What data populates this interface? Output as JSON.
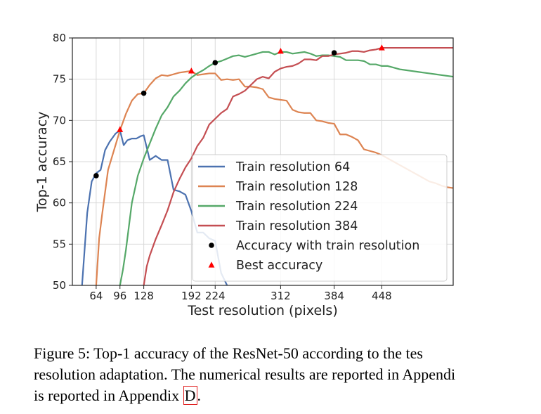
{
  "chart_data": {
    "type": "line",
    "xlabel": "Test resolution (pixels)",
    "ylabel": "Top-1 accuracy",
    "xlim": [
      32,
      544
    ],
    "ylim": [
      50,
      80
    ],
    "xticks": [
      64,
      96,
      128,
      192,
      224,
      312,
      384,
      448
    ],
    "yticks": [
      50,
      55,
      60,
      65,
      70,
      75,
      80
    ],
    "grid": true,
    "legend_placement": "lower-right",
    "series": [
      {
        "name": "Train resolution 64",
        "color": "#4c72b0",
        "x": [
          45,
          52,
          58,
          64,
          70,
          76,
          82,
          90,
          96,
          101,
          106,
          112,
          118,
          124,
          128,
          136,
          144,
          152,
          160,
          168,
          176,
          184,
          192,
          200,
          208,
          216,
          224,
          232,
          240
        ],
        "y": [
          50,
          58.8,
          62.6,
          63.6,
          64.0,
          66.4,
          67.4,
          68.4,
          68.8,
          67.0,
          67.6,
          67.8,
          67.8,
          68.1,
          68.2,
          65.2,
          65.7,
          65.2,
          65.2,
          61.6,
          61.4,
          61.0,
          59.0,
          56.4,
          56.4,
          55.7,
          55.4,
          51.5,
          50
        ]
      },
      {
        "name": "Train resolution 128",
        "color": "#dd8452",
        "x": [
          64,
          68,
          72,
          80,
          88,
          96,
          104,
          112,
          120,
          128,
          136,
          144,
          152,
          160,
          168,
          176,
          184,
          192,
          200,
          208,
          216,
          224,
          232,
          240,
          248,
          256,
          264,
          272,
          280,
          288,
          296,
          304,
          312,
          320,
          328,
          336,
          344,
          352,
          360,
          368,
          376,
          384,
          392,
          400,
          408,
          416,
          424,
          432,
          440,
          448,
          456,
          464,
          472,
          480,
          488,
          496,
          504,
          512,
          520,
          528,
          536,
          544
        ],
        "y": [
          50,
          55.7,
          58.6,
          64.0,
          66.4,
          68.8,
          70.8,
          72.4,
          73.2,
          73.3,
          74.3,
          75.1,
          75.5,
          75.4,
          75.6,
          75.8,
          75.9,
          76.0,
          75.5,
          75.6,
          75.7,
          75.7,
          74.9,
          75.0,
          74.9,
          75.0,
          74.1,
          74.1,
          74.0,
          73.8,
          72.8,
          72.6,
          72.5,
          72.4,
          71.3,
          71.0,
          70.9,
          70.9,
          70.0,
          69.9,
          69.7,
          69.6,
          68.3,
          68.3,
          68.0,
          67.6,
          66.5,
          66.3,
          66.1,
          65.8,
          65.4,
          65.0,
          64.6,
          64.2,
          63.8,
          63.4,
          63.0,
          62.6,
          62.4,
          62.1,
          61.9,
          61.8
        ]
      },
      {
        "name": "Train resolution 224",
        "color": "#55a868",
        "x": [
          96,
          100,
          104,
          112,
          120,
          128,
          136,
          144,
          152,
          160,
          168,
          176,
          184,
          192,
          200,
          208,
          216,
          224,
          232,
          240,
          248,
          256,
          264,
          272,
          280,
          288,
          296,
          304,
          312,
          320,
          328,
          336,
          344,
          352,
          360,
          368,
          376,
          384,
          392,
          400,
          408,
          416,
          424,
          432,
          440,
          448,
          456,
          464,
          472,
          480,
          488,
          496,
          504,
          512,
          520,
          528,
          536,
          544
        ],
        "y": [
          50,
          51.9,
          54.3,
          60.0,
          63.3,
          65.4,
          67.2,
          69.0,
          70.6,
          71.6,
          72.9,
          73.6,
          74.5,
          75.2,
          75.7,
          76.1,
          76.6,
          77.0,
          77.2,
          77.5,
          77.8,
          77.9,
          77.7,
          77.9,
          78.1,
          78.3,
          78.3,
          78.0,
          78.3,
          78.3,
          78.1,
          78.2,
          78.3,
          78.1,
          77.8,
          77.9,
          77.9,
          77.8,
          77.7,
          77.3,
          77.3,
          77.3,
          77.2,
          76.8,
          76.8,
          76.6,
          76.6,
          76.4,
          76.2,
          76.1,
          76.0,
          75.9,
          75.8,
          75.7,
          75.6,
          75.5,
          75.4,
          75.3
        ]
      },
      {
        "name": "Train resolution 384",
        "color": "#c44e52",
        "x": [
          128,
          132,
          136,
          144,
          152,
          160,
          168,
          176,
          184,
          192,
          200,
          208,
          216,
          224,
          232,
          240,
          248,
          256,
          264,
          272,
          280,
          288,
          296,
          304,
          312,
          320,
          328,
          336,
          344,
          352,
          360,
          368,
          376,
          384,
          392,
          400,
          408,
          416,
          424,
          432,
          440,
          448,
          456,
          464,
          472,
          480,
          488,
          496,
          504,
          512,
          520,
          528,
          536,
          544
        ],
        "y": [
          50,
          52.3,
          53.6,
          55.6,
          57.3,
          59.1,
          61.3,
          62.9,
          64.3,
          65.4,
          66.9,
          67.9,
          69.5,
          70.2,
          70.9,
          71.4,
          72.9,
          73.2,
          73.6,
          74.3,
          75.0,
          75.3,
          75.1,
          75.9,
          76.3,
          76.5,
          76.6,
          76.9,
          77.4,
          77.4,
          77.3,
          77.8,
          77.8,
          78.0,
          78.1,
          78.2,
          78.4,
          78.4,
          78.3,
          78.5,
          78.6,
          78.8,
          78.8,
          78.8,
          78.8,
          78.8,
          78.8,
          78.8,
          78.8,
          78.8,
          78.8,
          78.8,
          78.8,
          78.8
        ]
      },
      {
        "name": "Accuracy with train resolution",
        "color": "#000000",
        "marker": "circle",
        "x": [
          64,
          128,
          224,
          384
        ],
        "y": [
          63.3,
          73.3,
          77.0,
          78.2
        ]
      },
      {
        "name": "Best accuracy",
        "color": "#ff0000",
        "marker": "triangle",
        "x": [
          96,
          192,
          312,
          448
        ],
        "y": [
          68.9,
          76.0,
          78.4,
          78.8
        ]
      }
    ]
  },
  "caption": {
    "line1": "Figure 5:   Top-1 accuracy of the ResNet-50 according to the tes",
    "line2": "resolution adaptation. The numerical results are reported in Appendi",
    "line3_pre": "is reported in Appendix ",
    "line3_ref": "D",
    "line3_post": "."
  }
}
